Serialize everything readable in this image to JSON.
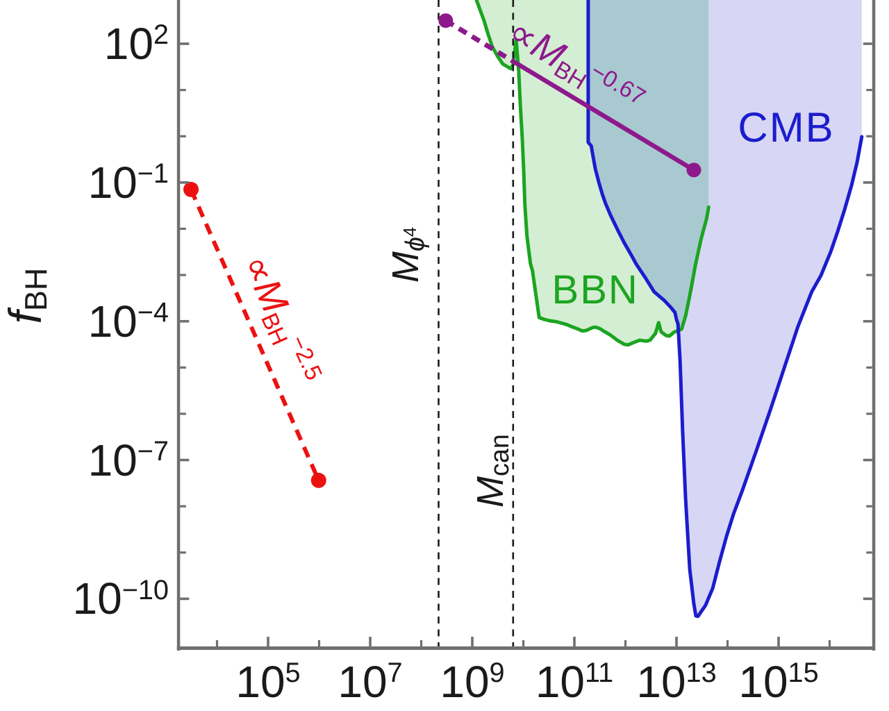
{
  "figure": {
    "background": "#ffffff",
    "frame_color": "#6F6F6F",
    "text_color": "#1a1a1a",
    "dashed_guide_color": "#1a1a1a"
  },
  "ylabel": {
    "base": "f",
    "sub": "BH"
  },
  "axes": {
    "x": {
      "scale": "log",
      "base": "10",
      "log_min": 3.245,
      "log_max": 16.85,
      "majors": [
        {
          "v": 5,
          "exp": "5"
        },
        {
          "v": 7,
          "exp": "7"
        },
        {
          "v": 9,
          "exp": "9"
        },
        {
          "v": 11,
          "exp": "11"
        },
        {
          "v": 13,
          "exp": "13"
        },
        {
          "v": 15,
          "exp": "15"
        }
      ],
      "minors": [
        4,
        6,
        8,
        10,
        12,
        14,
        16
      ]
    },
    "y": {
      "scale": "log",
      "base": "10",
      "log_min": -11.06,
      "log_max": 2.946,
      "majors": [
        {
          "v": 2,
          "exp": "2"
        },
        {
          "v": -1,
          "exp": "−1"
        },
        {
          "v": -4,
          "exp": "−4"
        },
        {
          "v": -7,
          "exp": "−7"
        },
        {
          "v": -10,
          "exp": "−10"
        }
      ],
      "minors": [
        1,
        0,
        -2,
        -3,
        -5,
        -6,
        -8,
        -9
      ]
    }
  },
  "chart_data": {
    "type": "area",
    "description": "Log-log exclusion plot of black hole abundance f_BH versus black hole mass; shaded BBN and CMB excluded regions plus two proportionality guide lines",
    "grid": false,
    "regions": [
      {
        "name": "BBN",
        "label": "BBN",
        "color": "#1CA421",
        "fill": "#D4EED3",
        "label_anchor": {
          "logM": 11.41,
          "logf": -3.33,
          "rot": 0
        },
        "curve": [
          [
            9.08,
            2.95
          ],
          [
            9.23,
            2.5
          ],
          [
            9.3,
            2.24
          ],
          [
            9.39,
            1.94
          ],
          [
            9.49,
            1.74
          ],
          [
            9.6,
            1.56
          ],
          [
            9.71,
            1.49
          ],
          [
            9.76,
            1.46
          ],
          [
            9.8,
            1.55
          ],
          [
            9.86,
            2.08
          ],
          [
            9.91,
            1.4
          ],
          [
            9.94,
            0.69
          ],
          [
            9.98,
            -0.06
          ],
          [
            10.01,
            -0.81
          ],
          [
            10.03,
            -1.48
          ],
          [
            10.07,
            -2.16
          ],
          [
            10.14,
            -2.76
          ],
          [
            10.18,
            -2.91
          ],
          [
            10.31,
            -3.92
          ],
          [
            10.41,
            -3.96
          ],
          [
            10.52,
            -3.99
          ],
          [
            10.65,
            -4.01
          ],
          [
            10.75,
            -4.04
          ],
          [
            10.85,
            -4.07
          ],
          [
            10.93,
            -4.11
          ],
          [
            11.03,
            -4.15
          ],
          [
            11.16,
            -4.21
          ],
          [
            11.23,
            -4.2
          ],
          [
            11.37,
            -4.13
          ],
          [
            11.43,
            -4.13
          ],
          [
            11.5,
            -4.16
          ],
          [
            11.57,
            -4.21
          ],
          [
            11.71,
            -4.3
          ],
          [
            11.84,
            -4.41
          ],
          [
            11.98,
            -4.5
          ],
          [
            12.05,
            -4.51
          ],
          [
            12.16,
            -4.46
          ],
          [
            12.28,
            -4.41
          ],
          [
            12.41,
            -4.43
          ],
          [
            12.48,
            -4.41
          ],
          [
            12.59,
            -4.26
          ],
          [
            12.65,
            -4.03
          ],
          [
            12.7,
            -4.23
          ],
          [
            12.8,
            -4.31
          ],
          [
            12.86,
            -4.32
          ],
          [
            12.96,
            -4.23
          ],
          [
            13.04,
            -4.2
          ],
          [
            13.1,
            -4.17
          ],
          [
            13.18,
            -3.88
          ],
          [
            13.24,
            -3.55
          ],
          [
            13.3,
            -3.21
          ],
          [
            13.37,
            -2.79
          ],
          [
            13.48,
            -2.23
          ],
          [
            13.59,
            -1.78
          ],
          [
            13.63,
            -1.53
          ]
        ]
      },
      {
        "name": "CMB",
        "label": "CMB",
        "color": "#1C1CCE",
        "fill": "#D7D7F5",
        "label_anchor": {
          "logM": 15.15,
          "logf": 0.18,
          "rot": 0
        },
        "curve": [
          [
            11.27,
            2.95
          ],
          [
            11.27,
            -0.13
          ],
          [
            11.33,
            -0.21
          ],
          [
            11.37,
            -0.46
          ],
          [
            11.41,
            -0.7
          ],
          [
            11.48,
            -1.0
          ],
          [
            11.55,
            -1.26
          ],
          [
            11.61,
            -1.45
          ],
          [
            11.71,
            -1.71
          ],
          [
            11.84,
            -2.01
          ],
          [
            11.98,
            -2.31
          ],
          [
            12.11,
            -2.56
          ],
          [
            12.21,
            -2.76
          ],
          [
            12.39,
            -3.06
          ],
          [
            12.56,
            -3.36
          ],
          [
            12.76,
            -3.55
          ],
          [
            12.89,
            -3.7
          ],
          [
            12.97,
            -3.81
          ],
          [
            13.0,
            -3.96
          ],
          [
            13.03,
            -4.06
          ],
          [
            13.07,
            -4.86
          ],
          [
            13.12,
            -6.36
          ],
          [
            13.18,
            -7.86
          ],
          [
            13.26,
            -9.36
          ],
          [
            13.34,
            -10.11
          ],
          [
            13.38,
            -10.37
          ],
          [
            13.42,
            -10.38
          ],
          [
            13.57,
            -10.14
          ],
          [
            13.71,
            -9.77
          ],
          [
            13.84,
            -9.21
          ],
          [
            13.98,
            -8.65
          ],
          [
            14.12,
            -8.16
          ],
          [
            14.29,
            -7.66
          ],
          [
            14.56,
            -6.81
          ],
          [
            14.84,
            -5.91
          ],
          [
            15.11,
            -5.01
          ],
          [
            15.38,
            -4.11
          ],
          [
            15.65,
            -3.36
          ],
          [
            15.83,
            -3.01
          ],
          [
            16.02,
            -2.5
          ],
          [
            16.16,
            -2.05
          ],
          [
            16.29,
            -1.6
          ],
          [
            16.43,
            -1.06
          ],
          [
            16.54,
            -0.55
          ],
          [
            16.63,
            -0.01
          ]
        ]
      }
    ],
    "overlap": {
      "fill": "#A9C9D1",
      "polygon": [
        [
          11.27,
          2.95
        ],
        [
          11.27,
          -0.13
        ],
        [
          11.33,
          -0.21
        ],
        [
          11.37,
          -0.46
        ],
        [
          11.41,
          -0.7
        ],
        [
          11.48,
          -1.0
        ],
        [
          11.55,
          -1.26
        ],
        [
          11.61,
          -1.45
        ],
        [
          11.71,
          -1.71
        ],
        [
          11.84,
          -2.01
        ],
        [
          11.98,
          -2.31
        ],
        [
          12.11,
          -2.56
        ],
        [
          12.21,
          -2.76
        ],
        [
          12.39,
          -3.06
        ],
        [
          12.56,
          -3.36
        ],
        [
          12.76,
          -3.55
        ],
        [
          12.89,
          -3.7
        ],
        [
          12.97,
          -3.81
        ],
        [
          13.0,
          -3.96
        ],
        [
          13.03,
          -4.06
        ],
        [
          13.05,
          -4.19
        ],
        [
          13.1,
          -4.17
        ],
        [
          13.18,
          -3.88
        ],
        [
          13.24,
          -3.55
        ],
        [
          13.3,
          -3.21
        ],
        [
          13.37,
          -2.79
        ],
        [
          13.48,
          -2.23
        ],
        [
          13.59,
          -1.78
        ],
        [
          13.63,
          -1.53
        ]
      ]
    },
    "vlines": [
      {
        "logM": 8.34,
        "label": {
          "base": "M",
          "sub": "ϕ",
          "sub_sup": "4"
        },
        "label_anchor": {
          "logM": 7.69,
          "logf": -2.56,
          "rot": -90
        }
      },
      {
        "logM": 9.8,
        "label": {
          "base": "M",
          "sub": "can"
        },
        "label_anchor": {
          "logM": 9.35,
          "logf": -7.23,
          "rot": -90
        }
      }
    ],
    "red_line": {
      "color": "#EC1111",
      "style": "dashed",
      "points": [
        [
          3.49,
          -1.15
        ],
        [
          5.99,
          -7.44
        ]
      ],
      "dots": [
        [
          3.49,
          -1.15
        ],
        [
          5.99,
          -7.44
        ]
      ],
      "slope": -2.5,
      "label": {
        "prefix": "∝",
        "base": "M",
        "sub": "BH",
        "sup": "−2.5",
        "anchor": {
          "logM": 5.26,
          "logf": -3.96,
          "rot": 66
        }
      }
    },
    "purple_line": {
      "color": "#8E198C",
      "dashed_points": [
        [
          8.48,
          2.5
        ],
        [
          9.8,
          1.62
        ]
      ],
      "solid_points": [
        [
          9.8,
          1.62
        ],
        [
          13.34,
          -0.73
        ]
      ],
      "dots": [
        [
          8.48,
          2.5
        ],
        [
          13.34,
          -0.73
        ]
      ],
      "slope": -0.67,
      "label": {
        "prefix": "∝",
        "base": "M",
        "sub": "BH",
        "sup": "−0.67",
        "anchor": {
          "logM": 11.03,
          "logf": 1.5,
          "rot": 31
        }
      }
    }
  }
}
